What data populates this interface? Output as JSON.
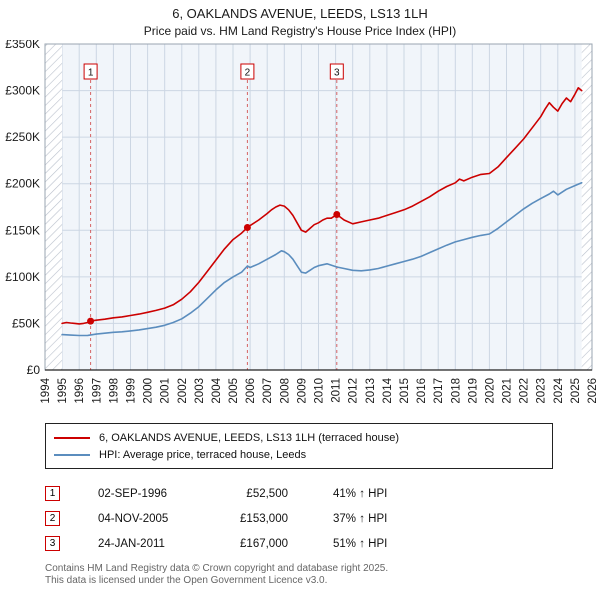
{
  "header": {
    "title": "6, OAKLANDS AVENUE, LEEDS, LS13 1LH",
    "subtitle": "Price paid vs. HM Land Registry's House Price Index (HPI)"
  },
  "chart_data": {
    "type": "line",
    "x_axis": {
      "min": 1994,
      "max": 2026,
      "tick_years": [
        1994,
        1995,
        1996,
        1997,
        1998,
        1999,
        2000,
        2001,
        2002,
        2003,
        2004,
        2005,
        2006,
        2007,
        2008,
        2009,
        2010,
        2011,
        2012,
        2013,
        2014,
        2015,
        2016,
        2017,
        2018,
        2019,
        2020,
        2021,
        2022,
        2023,
        2024,
        2025,
        2026
      ]
    },
    "y_axis": {
      "min": 0,
      "max": 350000,
      "ticks": [
        0,
        50000,
        100000,
        150000,
        200000,
        250000,
        300000,
        350000
      ],
      "tick_labels": [
        "£0",
        "£50K",
        "£100K",
        "£150K",
        "£200K",
        "£250K",
        "£300K",
        "£350K"
      ]
    },
    "plot": {
      "data_start": 1995.0,
      "data_end": 2025.4,
      "bg": "#f1f5fa",
      "grid": "#ccd6e3",
      "hatch": "#b9c0cc",
      "border": "#9aa4b0"
    },
    "series": [
      {
        "name": "6, OAKLANDS AVENUE, LEEDS, LS13 1LH (terraced house)",
        "color": "#cc0000",
        "x": [
          1995.0,
          1995.25,
          1995.5,
          1995.75,
          1996.0,
          1996.25,
          1996.5,
          1996.67,
          1997.0,
          1997.5,
          1998.0,
          1998.5,
          1999.0,
          1999.5,
          2000.0,
          2000.5,
          2001.0,
          2001.5,
          2002.0,
          2002.5,
          2003.0,
          2003.5,
          2004.0,
          2004.5,
          2005.0,
          2005.5,
          2005.84,
          2006.0,
          2006.5,
          2007.0,
          2007.25,
          2007.5,
          2007.75,
          2008.0,
          2008.25,
          2008.5,
          2008.75,
          2009.0,
          2009.25,
          2009.5,
          2009.75,
          2010.0,
          2010.25,
          2010.5,
          2010.75,
          2011.07,
          2011.5,
          2012.0,
          2012.5,
          2013.0,
          2013.5,
          2014.0,
          2014.5,
          2015.0,
          2015.5,
          2016.0,
          2016.5,
          2017.0,
          2017.5,
          2018.0,
          2018.25,
          2018.5,
          2019.0,
          2019.5,
          2020.0,
          2020.5,
          2021.0,
          2021.5,
          2022.0,
          2022.5,
          2023.0,
          2023.25,
          2023.5,
          2023.75,
          2024.0,
          2024.25,
          2024.5,
          2024.75,
          2025.0,
          2025.2,
          2025.4
        ],
        "values": [
          50000,
          51000,
          50500,
          50000,
          49500,
          50000,
          51000,
          52500,
          53500,
          54500,
          56000,
          57000,
          58500,
          60000,
          62000,
          64000,
          66500,
          70000,
          76000,
          84000,
          94000,
          106000,
          118000,
          130000,
          140000,
          147000,
          153000,
          155000,
          161000,
          168000,
          172000,
          175000,
          177000,
          176000,
          172000,
          166000,
          158000,
          150000,
          148000,
          152000,
          156000,
          158000,
          161000,
          163000,
          163000,
          167000,
          161000,
          157000,
          159000,
          161000,
          163000,
          166000,
          169000,
          172000,
          176000,
          181000,
          186000,
          192000,
          197000,
          201000,
          205000,
          203000,
          207000,
          210000,
          211000,
          218000,
          228000,
          238000,
          248000,
          260000,
          272000,
          280000,
          287000,
          282000,
          278000,
          286000,
          292000,
          288000,
          296000,
          303000,
          300000
        ]
      },
      {
        "name": "HPI: Average price, terraced house, Leeds",
        "color": "#5b8dbe",
        "x": [
          1995.0,
          1995.5,
          1996.0,
          1996.5,
          1997.0,
          1997.5,
          1998.0,
          1998.5,
          1999.0,
          1999.5,
          2000.0,
          2000.5,
          2001.0,
          2001.5,
          2002.0,
          2002.5,
          2003.0,
          2003.5,
          2004.0,
          2004.5,
          2005.0,
          2005.5,
          2005.84,
          2006.0,
          2006.5,
          2007.0,
          2007.5,
          2007.83,
          2008.0,
          2008.25,
          2008.5,
          2008.75,
          2009.0,
          2009.25,
          2009.5,
          2009.75,
          2010.0,
          2010.5,
          2011.07,
          2011.5,
          2012.0,
          2012.5,
          2013.0,
          2013.5,
          2014.0,
          2014.5,
          2015.0,
          2015.5,
          2016.0,
          2016.5,
          2017.0,
          2017.5,
          2018.0,
          2018.5,
          2019.0,
          2019.5,
          2020.0,
          2020.5,
          2021.0,
          2021.5,
          2022.0,
          2022.5,
          2023.0,
          2023.5,
          2023.75,
          2024.0,
          2024.5,
          2025.0,
          2025.4
        ],
        "values": [
          38000,
          37500,
          37000,
          37200,
          38500,
          39500,
          40500,
          41000,
          42000,
          43000,
          44500,
          46000,
          48000,
          51000,
          55000,
          61000,
          68000,
          77000,
          86000,
          94000,
          100000,
          105000,
          111700,
          110000,
          114000,
          119000,
          124000,
          128000,
          127000,
          124000,
          119000,
          112000,
          105000,
          104000,
          107000,
          110000,
          112000,
          114000,
          110600,
          109000,
          107000,
          106500,
          107500,
          109000,
          111500,
          114000,
          116500,
          119000,
          122000,
          126000,
          130000,
          134000,
          137500,
          140000,
          142500,
          144500,
          146000,
          152000,
          159000,
          166000,
          173000,
          179000,
          184000,
          189000,
          192000,
          188000,
          194000,
          198000,
          201000
        ]
      }
    ],
    "sales": [
      {
        "label": "1",
        "x": 1996.67,
        "value": 52500
      },
      {
        "label": "2",
        "x": 2005.84,
        "value": 153000
      },
      {
        "label": "3",
        "x": 2011.07,
        "value": 167000
      }
    ]
  },
  "legend": {
    "items": [
      {
        "label": "6, OAKLANDS AVENUE, LEEDS, LS13 1LH (terraced house)",
        "color": "#cc0000"
      },
      {
        "label": "HPI: Average price, terraced house, Leeds",
        "color": "#5b8dbe"
      }
    ]
  },
  "sales_table": {
    "rows": [
      {
        "num": "1",
        "date": "02-SEP-1996",
        "price": "£52,500",
        "hpi": "41% ↑ HPI"
      },
      {
        "num": "2",
        "date": "04-NOV-2005",
        "price": "£153,000",
        "hpi": "37% ↑ HPI"
      },
      {
        "num": "3",
        "date": "24-JAN-2011",
        "price": "£167,000",
        "hpi": "51% ↑ HPI"
      }
    ]
  },
  "footer": {
    "line1": "Contains HM Land Registry data © Crown copyright and database right 2025.",
    "line2": "This data is licensed under the Open Government Licence v3.0."
  }
}
